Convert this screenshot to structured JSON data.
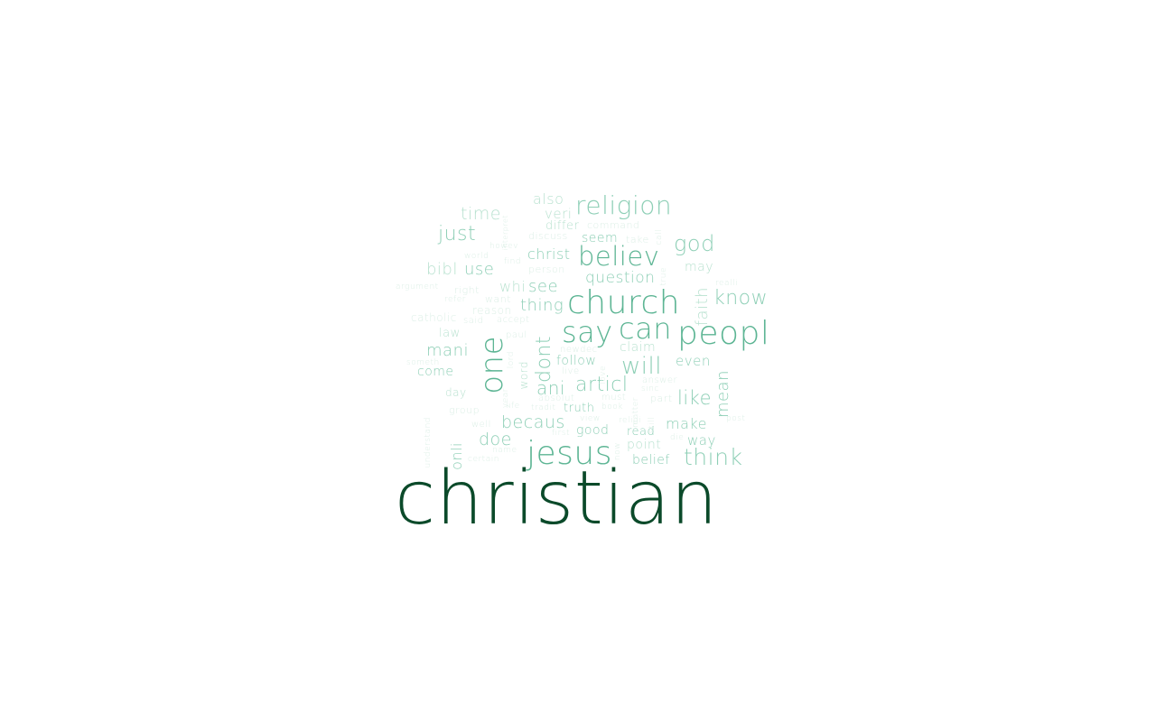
{
  "word_cloud": {
    "palette": {
      "darkest": "#0b4a2a",
      "strong": "#5db594",
      "medium": "#8ecfb6",
      "light": "#b9e2d0",
      "faint": "#dcefe6"
    },
    "words": [
      {
        "text": "christian",
        "weight": 1.0,
        "shade": "darkest",
        "orientation": "horizontal"
      },
      {
        "text": "church",
        "weight": 0.45,
        "shade": "strong",
        "orientation": "horizontal"
      },
      {
        "text": "peopl",
        "weight": 0.42,
        "shade": "strong",
        "orientation": "horizontal"
      },
      {
        "text": "jesus",
        "weight": 0.44,
        "shade": "strong",
        "orientation": "horizontal"
      },
      {
        "text": "one",
        "weight": 0.43,
        "shade": "strong",
        "orientation": "vertical"
      },
      {
        "text": "say",
        "weight": 0.4,
        "shade": "strong",
        "orientation": "horizontal"
      },
      {
        "text": "can",
        "weight": 0.4,
        "shade": "strong",
        "orientation": "horizontal"
      },
      {
        "text": "believ",
        "weight": 0.36,
        "shade": "strong",
        "orientation": "horizontal"
      },
      {
        "text": "religion",
        "weight": 0.35,
        "shade": "medium",
        "orientation": "horizontal"
      },
      {
        "text": "god",
        "weight": 0.3,
        "shade": "medium",
        "orientation": "horizontal"
      },
      {
        "text": "know",
        "weight": 0.27,
        "shade": "medium",
        "orientation": "horizontal"
      },
      {
        "text": "will",
        "weight": 0.3,
        "shade": "medium",
        "orientation": "horizontal"
      },
      {
        "text": "think",
        "weight": 0.3,
        "shade": "medium",
        "orientation": "horizontal"
      },
      {
        "text": "articl",
        "weight": 0.27,
        "shade": "medium",
        "orientation": "horizontal"
      },
      {
        "text": "dont",
        "weight": 0.28,
        "shade": "medium",
        "orientation": "vertical"
      },
      {
        "text": "just",
        "weight": 0.26,
        "shade": "medium",
        "orientation": "horizontal"
      },
      {
        "text": "time",
        "weight": 0.24,
        "shade": "light",
        "orientation": "horizontal"
      },
      {
        "text": "like",
        "weight": 0.26,
        "shade": "medium",
        "orientation": "horizontal"
      },
      {
        "text": "mean",
        "weight": 0.24,
        "shade": "medium",
        "orientation": "vertical"
      },
      {
        "text": "becaus",
        "weight": 0.24,
        "shade": "medium",
        "orientation": "horizontal"
      },
      {
        "text": "doe",
        "weight": 0.24,
        "shade": "medium",
        "orientation": "horizontal"
      },
      {
        "text": "thing",
        "weight": 0.22,
        "shade": "medium",
        "orientation": "horizontal"
      },
      {
        "text": "question",
        "weight": 0.2,
        "shade": "medium",
        "orientation": "horizontal"
      },
      {
        "text": "mani",
        "weight": 0.22,
        "shade": "medium",
        "orientation": "horizontal"
      },
      {
        "text": "use",
        "weight": 0.22,
        "shade": "medium",
        "orientation": "horizontal"
      },
      {
        "text": "bibl",
        "weight": 0.22,
        "shade": "light",
        "orientation": "horizontal"
      },
      {
        "text": "see",
        "weight": 0.22,
        "shade": "medium",
        "orientation": "horizontal"
      },
      {
        "text": "whi",
        "weight": 0.2,
        "shade": "light",
        "orientation": "horizontal"
      },
      {
        "text": "ani",
        "weight": 0.24,
        "shade": "medium",
        "orientation": "horizontal"
      },
      {
        "text": "faith",
        "weight": 0.22,
        "shade": "light",
        "orientation": "vertical"
      },
      {
        "text": "also",
        "weight": 0.2,
        "shade": "light",
        "orientation": "horizontal"
      },
      {
        "text": "make",
        "weight": 0.2,
        "shade": "medium",
        "orientation": "horizontal"
      },
      {
        "text": "christ",
        "weight": 0.2,
        "shade": "medium",
        "orientation": "horizontal"
      },
      {
        "text": "onli",
        "weight": 0.2,
        "shade": "medium",
        "orientation": "vertical"
      },
      {
        "text": "even",
        "weight": 0.19,
        "shade": "medium",
        "orientation": "horizontal"
      },
      {
        "text": "way",
        "weight": 0.19,
        "shade": "medium",
        "orientation": "horizontal"
      },
      {
        "text": "veri",
        "weight": 0.19,
        "shade": "light",
        "orientation": "horizontal"
      },
      {
        "text": "may",
        "weight": 0.18,
        "shade": "light",
        "orientation": "horizontal"
      },
      {
        "text": "seem",
        "weight": 0.18,
        "shade": "medium",
        "orientation": "horizontal"
      },
      {
        "text": "follow",
        "weight": 0.18,
        "shade": "medium",
        "orientation": "horizontal"
      },
      {
        "text": "claim",
        "weight": 0.18,
        "shade": "light",
        "orientation": "horizontal"
      },
      {
        "text": "good",
        "weight": 0.18,
        "shade": "medium",
        "orientation": "horizontal"
      },
      {
        "text": "point",
        "weight": 0.18,
        "shade": "light",
        "orientation": "horizontal"
      },
      {
        "text": "belief",
        "weight": 0.18,
        "shade": "medium",
        "orientation": "horizontal"
      },
      {
        "text": "truth",
        "weight": 0.17,
        "shade": "medium",
        "orientation": "horizontal"
      },
      {
        "text": "come",
        "weight": 0.17,
        "shade": "medium",
        "orientation": "horizontal"
      },
      {
        "text": "law",
        "weight": 0.16,
        "shade": "light",
        "orientation": "horizontal"
      },
      {
        "text": "word",
        "weight": 0.16,
        "shade": "light",
        "orientation": "vertical"
      },
      {
        "text": "differ",
        "weight": 0.16,
        "shade": "light",
        "orientation": "horizontal"
      },
      {
        "text": "read",
        "weight": 0.16,
        "shade": "medium",
        "orientation": "horizontal"
      },
      {
        "text": "day",
        "weight": 0.15,
        "shade": "light",
        "orientation": "horizontal"
      },
      {
        "text": "catholic",
        "weight": 0.14,
        "shade": "faint",
        "orientation": "horizontal"
      },
      {
        "text": "reason",
        "weight": 0.15,
        "shade": "faint",
        "orientation": "horizontal"
      },
      {
        "text": "group",
        "weight": 0.14,
        "shade": "faint",
        "orientation": "horizontal"
      },
      {
        "text": "person",
        "weight": 0.14,
        "shade": "faint",
        "orientation": "horizontal"
      },
      {
        "text": "discuss",
        "weight": 0.13,
        "shade": "faint",
        "orientation": "horizontal"
      },
      {
        "text": "command",
        "weight": 0.13,
        "shade": "faint",
        "orientation": "horizontal"
      },
      {
        "text": "take",
        "weight": 0.13,
        "shade": "faint",
        "orientation": "horizontal"
      },
      {
        "text": "want",
        "weight": 0.13,
        "shade": "faint",
        "orientation": "horizontal"
      },
      {
        "text": "right",
        "weight": 0.13,
        "shade": "faint",
        "orientation": "horizontal"
      },
      {
        "text": "said",
        "weight": 0.13,
        "shade": "faint",
        "orientation": "horizontal"
      },
      {
        "text": "accept",
        "weight": 0.13,
        "shade": "faint",
        "orientation": "horizontal"
      },
      {
        "text": "paul",
        "weight": 0.12,
        "shade": "faint",
        "orientation": "horizontal"
      },
      {
        "text": "newdec",
        "weight": 0.12,
        "shade": "faint",
        "orientation": "horizontal"
      },
      {
        "text": "live",
        "weight": 0.12,
        "shade": "faint",
        "orientation": "horizontal"
      },
      {
        "text": "absolut",
        "weight": 0.12,
        "shade": "faint",
        "orientation": "horizontal"
      },
      {
        "text": "must",
        "weight": 0.12,
        "shade": "faint",
        "orientation": "horizontal"
      },
      {
        "text": "part",
        "weight": 0.13,
        "shade": "faint",
        "orientation": "horizontal"
      },
      {
        "text": "answer",
        "weight": 0.12,
        "shade": "faint",
        "orientation": "horizontal"
      },
      {
        "text": "sinc",
        "weight": 0.11,
        "shade": "faint",
        "orientation": "horizontal"
      },
      {
        "text": "book",
        "weight": 0.11,
        "shade": "faint",
        "orientation": "horizontal"
      },
      {
        "text": "tradit",
        "weight": 0.11,
        "shade": "faint",
        "orientation": "horizontal"
      },
      {
        "text": "life",
        "weight": 0.11,
        "shade": "faint",
        "orientation": "horizontal"
      },
      {
        "text": "view",
        "weight": 0.11,
        "shade": "faint",
        "orientation": "horizontal"
      },
      {
        "text": "religi",
        "weight": 0.11,
        "shade": "faint",
        "orientation": "horizontal"
      },
      {
        "text": "well",
        "weight": 0.12,
        "shade": "faint",
        "orientation": "horizontal"
      },
      {
        "text": "first",
        "weight": 0.11,
        "shade": "faint",
        "orientation": "horizontal"
      },
      {
        "text": "die",
        "weight": 0.11,
        "shade": "faint",
        "orientation": "horizontal"
      },
      {
        "text": "post",
        "weight": 0.11,
        "shade": "faint",
        "orientation": "horizontal"
      },
      {
        "text": "certain",
        "weight": 0.11,
        "shade": "faint",
        "orientation": "horizontal"
      },
      {
        "text": "understand",
        "weight": 0.11,
        "shade": "faint",
        "orientation": "vertical"
      },
      {
        "text": "someth",
        "weight": 0.11,
        "shade": "faint",
        "orientation": "horizontal"
      },
      {
        "text": "argument",
        "weight": 0.11,
        "shade": "faint",
        "orientation": "horizontal"
      },
      {
        "text": "refer",
        "weight": 0.11,
        "shade": "faint",
        "orientation": "horizontal"
      },
      {
        "text": "world",
        "weight": 0.1,
        "shade": "faint",
        "orientation": "horizontal"
      },
      {
        "text": "find",
        "weight": 0.11,
        "shade": "faint",
        "orientation": "horizontal"
      },
      {
        "text": "howev",
        "weight": 0.1,
        "shade": "faint",
        "orientation": "horizontal"
      },
      {
        "text": "interpret",
        "weight": 0.1,
        "shade": "faint",
        "orientation": "vertical"
      },
      {
        "text": "call",
        "weight": 0.1,
        "shade": "faint",
        "orientation": "vertical"
      },
      {
        "text": "true",
        "weight": 0.1,
        "shade": "faint",
        "orientation": "vertical"
      },
      {
        "text": "realli",
        "weight": 0.11,
        "shade": "faint",
        "orientation": "horizontal"
      },
      {
        "text": "love",
        "weight": 0.1,
        "shade": "faint",
        "orientation": "vertical"
      },
      {
        "text": "year",
        "weight": 0.1,
        "shade": "faint",
        "orientation": "vertical"
      },
      {
        "text": "lord",
        "weight": 0.1,
        "shade": "faint",
        "orientation": "vertical"
      },
      {
        "text": "name",
        "weight": 0.1,
        "shade": "faint",
        "orientation": "horizontal"
      },
      {
        "text": "now",
        "weight": 0.1,
        "shade": "faint",
        "orientation": "vertical"
      },
      {
        "text": "still",
        "weight": 0.1,
        "shade": "faint",
        "orientation": "vertical"
      },
      {
        "text": "matter",
        "weight": 0.1,
        "shade": "faint",
        "orientation": "vertical"
      }
    ]
  }
}
